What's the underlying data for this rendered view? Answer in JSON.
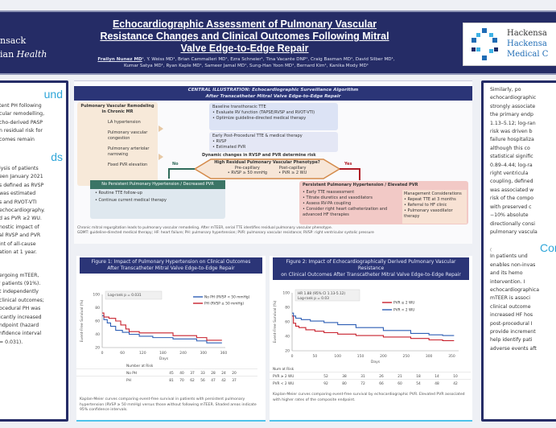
{
  "header": {
    "left_logo": [
      "nsack",
      "ian",
      "Health"
    ],
    "title": "Echocardiographic Assessment of Pulmonary Vascular Resistance Changes and Clinical Outcomes Following Mitral Valve Edge-to-Edge Repair",
    "first_author": "Frailyn Nunez MD",
    "authors": "¹, Y. Weiss MD¹, Brian Cammalleri MD¹, Ezra Schneier¹, Tina Vacante DNP¹, Craig Basman MD¹, David Silber MD¹, Kumar Satya MD¹, Ryan Kaple MD¹, Sameer Jamal MD¹, Sung-Han Yoon MD¹, Bernard Kim¹, Kanika Mody MD¹",
    "right_logo": [
      "Hackensa",
      "Hackensa",
      "Medical C"
    ]
  },
  "left": {
    "background_heading": "und",
    "background_lines": [
      "tent PH following",
      "cular remodelling,",
      "cho-derived PASP",
      "n residual risk for",
      "comes      remain"
    ],
    "methods_heading": "ds",
    "methods_lines": [
      "lysis   of   patients",
      "een  January  2021",
      "s defined as RVSP",
      "  was      estimated",
      "s  and  RVOT-VTI",
      "echocardiography.",
      "d as PVR ≥2 WU.",
      "nostic  impact  of",
      "al RVSP and PVR",
      "int   of   all-cause",
      "ation at 1 year."
    ],
    "results_lines": [
      "ergoing mTEER,",
      "' patients (91%).",
      "t   independently",
      "clinical outcomes;",
      "ocedural PH was",
      "icantly  increased",
      "ndpoint   (hazard",
      "nfidence interval",
      " = 0.031)."
    ]
  },
  "central": {
    "title": "CENTRAL ILLUSTRATION: Echocardiographic Surveillance Algorithm",
    "subtitle": "After Transcatheter Mitral Valve Edge-to-Edge Repair",
    "pvr_title": "Pulmonary Vascular Remodeling in Chronic MR",
    "pvr_items": [
      "LA hypertension",
      "Pulmonary vascular congestion",
      "Pulmonary arteriolar narrowing",
      "Fixed PVR elevation"
    ],
    "baseline": [
      "Baseline transthoracic TTE",
      "• Evaluate RV function (TAPSE/RVSP and RVOT-VTI)",
      "• Optimize guideline-directed medical therapy"
    ],
    "early": [
      "Early Post-Procedural TTE & medical therapy",
      "• RVSP",
      "• Estimated PVR"
    ],
    "dynamic": "Dynamic changes in RVSP and PVR determine risk",
    "decision": [
      "High Residual Pulmonary Vascular Phenotype?",
      "Pre-capillary",
      "• RVSP ≥ 50 mmHg",
      "Post-capillary",
      "• PVR ≥ 2 WU"
    ],
    "no": "No",
    "yes": "Yes",
    "no_box": [
      "No Persistent Pulmonary Hypertension / Decreased PVR",
      "• Routine TTE follow-up",
      "• Continue current medical therapy"
    ],
    "yes_box": [
      "Persistent Pulmonary Hypertension / Elevated PVR",
      "• Early TTE reassessment",
      "• Titrate diuretics and vasodilators",
      "• Assess RV-PA coupling",
      "• Consider right heart catheterization and advanced HF therapies"
    ],
    "yes_side": [
      "Management Considerations",
      "• Repeat TTE at 3 months",
      "• Referral to HF clinic",
      "• Pulmonary vasodilator therapy"
    ],
    "footnote1": "Chronic mitral regurgitation leads to pulmonary vascular remodeling. After mTEER, serial TTE identifies residual pulmonary vascular phenotype.",
    "footnote2": "GDMT: guideline-directed medical therapy; HF: heart failure; PH: pulmonary hypertension; PVR: pulmonary vascular resistance; RVSP: right ventricular systolic pressure"
  },
  "fig1": {
    "title": "Figure 1: Impact of Pulmonary Hypertension on Clinical Outcomes",
    "subtitle": "After Transcatheter Mitral Valve Edge-to-Edge Repair",
    "caption": "Kaplan-Meier curves comparing event-free survival in patients with persistent pulmonary hypertension (RVSP ≥ 50 mmHg) versus those without following mTEER. Shaded areas indicate 95% confidence intervals.",
    "risk_label": "Number at Risk",
    "risk_rows": [
      {
        "label": "No PH",
        "values": [
          "45",
          "40",
          "37",
          "33",
          "28",
          "24",
          "20"
        ]
      },
      {
        "label": "PH",
        "values": [
          "81",
          "70",
          "62",
          "56",
          "47",
          "42",
          "37"
        ]
      }
    ]
  },
  "fig2": {
    "title": "Figure 2: Impact of Echocardiographically Derived Pulmonary Vascular Resistance",
    "subtitle": "on Clinical Outcomes After Transcatheter Mitral Valve Edge-to-Edge Repair",
    "caption": "Kaplan-Meier curves comparing event-free survival by echocardiographic PVR. Elevated PVR associated with higher rates of the composite endpoint.",
    "risk_label": "Num at Risk",
    "risk_rows": [
      {
        "label": "PVR ≥ 2 WU",
        "values": [
          "52",
          "38",
          "31",
          "26",
          "21",
          "18",
          "14",
          "10"
        ]
      },
      {
        "label": "PVR < 2 WU",
        "values": [
          "92",
          "80",
          "72",
          "66",
          "60",
          "54",
          "48",
          "42"
        ]
      }
    ]
  },
  "chart_data": [
    {
      "type": "line",
      "title": "Figure 1: Impact of Pulmonary Hypertension on Clinical Outcomes",
      "xlabel": "Days",
      "ylabel": "Event-Free Survival (%)",
      "ylim": [
        20,
        100
      ],
      "xlim": [
        0,
        365
      ],
      "x_ticks": [
        0,
        60,
        120,
        180,
        240,
        300,
        360
      ],
      "y_ticks": [
        20,
        40,
        60,
        80,
        100
      ],
      "annotation": [
        "Log-rank p = 0.031"
      ],
      "legend": "top-right",
      "series": [
        {
          "name": "No PH (RVSP < 50 mmHg)",
          "color": "#2e5fb5",
          "x": [
            0,
            5,
            15,
            25,
            40,
            60,
            80,
            110,
            150,
            210,
            240,
            280,
            300,
            310,
            350
          ],
          "y": [
            68,
            62,
            57,
            52,
            46,
            43,
            40,
            37,
            35,
            33,
            33,
            30,
            30,
            27,
            27
          ]
        },
        {
          "name": "PH (RVSP ≥ 50 mmHg)",
          "color": "#c8202c",
          "x": [
            0,
            5,
            20,
            40,
            55,
            70,
            80,
            110,
            150,
            210,
            250,
            280,
            300,
            310,
            350
          ],
          "y": [
            72,
            66,
            64,
            60,
            54,
            48,
            44,
            42,
            42,
            38,
            38,
            35,
            35,
            31,
            31
          ]
        }
      ]
    },
    {
      "type": "line",
      "title": "Figure 2",
      "xlabel": "Days",
      "ylabel": "Event-Free Survival (%)",
      "ylim": [
        20,
        100
      ],
      "xlim": [
        0,
        365
      ],
      "x_ticks": [
        0,
        50,
        100,
        150,
        200,
        250,
        300,
        350
      ],
      "y_ticks": [
        20,
        40,
        60,
        80,
        100
      ],
      "annotation": [
        "HR 1.88 (95% CI 1.13-5.12)",
        "Log-rank p = 0.03"
      ],
      "legend": "top-right",
      "series": [
        {
          "name": "PVR ≥ 2 WU",
          "color": "#c8202c",
          "x": [
            0,
            3,
            8,
            15,
            30,
            50,
            70,
            100,
            140,
            200,
            260,
            300,
            330
          ],
          "y": [
            68,
            58,
            54,
            52,
            49,
            47,
            45,
            43,
            41,
            39,
            37,
            35,
            34
          ]
        },
        {
          "name": "PVR < 2 WU",
          "color": "#2e5fb5",
          "x": [
            0,
            3,
            8,
            20,
            40,
            70,
            100,
            140,
            200,
            260,
            300,
            330
          ],
          "y": [
            72,
            68,
            65,
            63,
            61,
            59,
            56,
            52,
            48,
            44,
            42,
            41
          ]
        }
      ]
    }
  ],
  "right": {
    "results_lines": [
      "Similarly,            po",
      "echocardiographic",
      "strongly associate",
      "the  primary  endp",
      "1.13–5.12; log-ran",
      "risk  was  driven  b",
      "failure  hospitaliza",
      "although  this  co",
      "statistical signific",
      "0.89–4.44;  log-ra",
      "right      ventricula",
      "coupling,  defined",
      "was associated w",
      "risk  of  the  compo",
      "with  preserved  c",
      "−10%      absolute",
      "directionally consi",
      "pulmonary vascula"
    ],
    "conclusion_heading": "Con",
    "conclusion_paren": "(",
    "conclusion_lines": [
      "In   patients   und",
      "enables  non-invas",
      "and     its     hemo",
      "intervention.         I",
      "echocardiographica",
      "mTEER  is  associ",
      "clinical      outcome",
      "increased  HF  hos",
      "post-procedural    I",
      "provide  increment",
      "help   identify   pati",
      "adverse events aft"
    ]
  },
  "colors": {
    "navy": "#252c66",
    "accent": "#2fa6d9",
    "red": "#c8202c",
    "blue": "#2e5fb5"
  }
}
